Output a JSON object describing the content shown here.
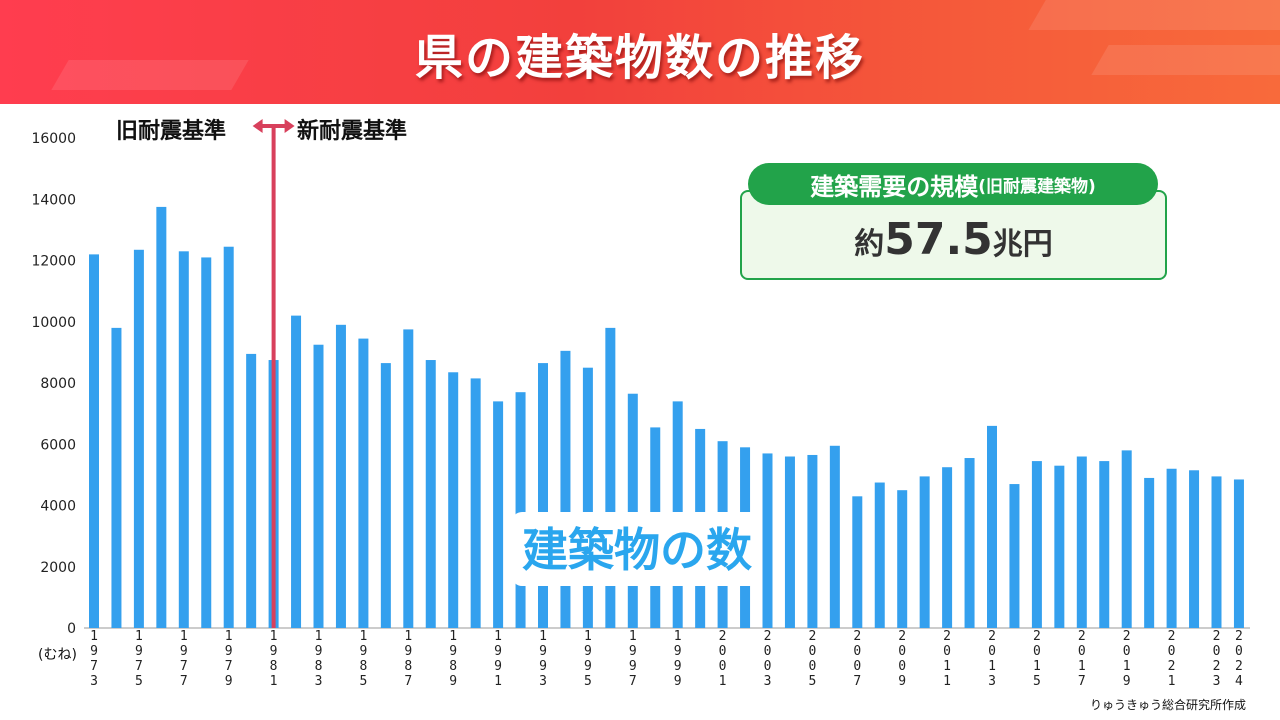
{
  "title": "県の建築物数の推移",
  "era": {
    "old": "旧耐震基準",
    "new": "新耐震基準"
  },
  "callout": {
    "title": "建築需要の規模",
    "title_note": "(旧耐震建築物)",
    "prefix": "約",
    "value": "57.5",
    "unit": "兆円"
  },
  "series_label": "建築物の数",
  "unit_label": "(むね)",
  "credit": "りゅうきゅう総合研究所作成",
  "colors": {
    "bar": "#34a0ee",
    "divider": "#d8405c",
    "accent": "#22a34a",
    "header": "#f2403c"
  },
  "chart_data": {
    "type": "bar",
    "categories": [
      "1973",
      "1974",
      "1975",
      "1976",
      "1977",
      "1978",
      "1979",
      "1980",
      "1981",
      "1982",
      "1983",
      "1984",
      "1985",
      "1986",
      "1987",
      "1988",
      "1989",
      "1990",
      "1991",
      "1992",
      "1993",
      "1994",
      "1995",
      "1996",
      "1997",
      "1998",
      "1999",
      "2000",
      "2001",
      "2002",
      "2003",
      "2004",
      "2005",
      "2006",
      "2007",
      "2008",
      "2009",
      "2010",
      "2011",
      "2012",
      "2013",
      "2014",
      "2015",
      "2016",
      "2017",
      "2018",
      "2019",
      "2020",
      "2021",
      "2022",
      "2023",
      "2024"
    ],
    "x_tick_labels": [
      "1973",
      "1975",
      "1977",
      "1979",
      "1981",
      "1983",
      "1985",
      "1987",
      "1989",
      "1991",
      "1993",
      "1995",
      "1997",
      "1999",
      "2001",
      "2003",
      "2005",
      "2007",
      "2009",
      "2011",
      "2013",
      "2015",
      "2017",
      "2019",
      "2021",
      "2023",
      "2024"
    ],
    "values": [
      12200,
      9800,
      12350,
      13750,
      12300,
      12100,
      12450,
      8950,
      8750,
      10200,
      9250,
      9900,
      9450,
      8650,
      9750,
      8750,
      8350,
      8150,
      7400,
      7700,
      8650,
      9050,
      8500,
      9800,
      7650,
      6550,
      7400,
      6500,
      6100,
      5900,
      5700,
      5600,
      5650,
      5950,
      4300,
      4750,
      4500,
      4950,
      5250,
      5550,
      6600,
      4700,
      5450,
      5300,
      5600,
      5450,
      5800,
      4900,
      5200,
      5150,
      4950,
      4850
    ],
    "y_ticks": [
      0,
      2000,
      4000,
      6000,
      8000,
      10000,
      12000,
      14000,
      16000
    ],
    "ylim": [
      0,
      16000
    ],
    "divider_year": "1981",
    "grid": false
  }
}
